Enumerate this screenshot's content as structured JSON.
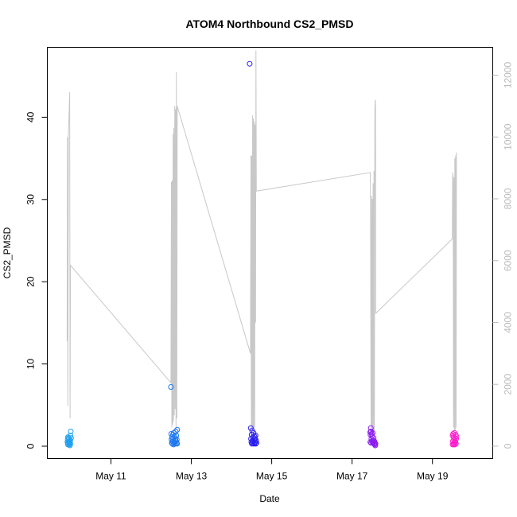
{
  "chart_data": {
    "type": "scatter",
    "title": "ATOM4 Northbound CS2_PMSD",
    "xlabel": "Date",
    "ylabel": "CS2_PMSD",
    "xlim": [
      "2016-05-09T10:00",
      "2016-05-20T12:00"
    ],
    "ylim": [
      -1.5,
      48.5
    ],
    "x_ticks": [
      {
        "label": "May 11",
        "date": "2016-05-11"
      },
      {
        "label": "May 13",
        "date": "2016-05-13"
      },
      {
        "label": "May 15",
        "date": "2016-05-15"
      },
      {
        "label": "May 17",
        "date": "2016-05-17"
      },
      {
        "label": "May 19",
        "date": "2016-05-19"
      }
    ],
    "y_ticks": [
      0,
      10,
      20,
      30,
      40
    ],
    "y2_ticks": [
      0,
      2000,
      4000,
      6000,
      8000,
      10000,
      12000
    ],
    "y2lim": [
      -400,
      12900
    ],
    "grid": false,
    "point_colors": [
      "#1ea0f0",
      "#1e78f0",
      "#2a1ef0",
      "#8a1ef0",
      "#ff1ecc"
    ],
    "line_color": "#c8c8c8",
    "right_axis_color": "#bbbbbb",
    "secondary_series": {
      "type": "line",
      "points": [
        [
          "2016-05-09T21:50",
          3400
        ],
        [
          "2016-05-09T22:00",
          10000
        ],
        [
          "2016-05-09T22:15",
          1300
        ],
        [
          "2016-05-09T22:35",
          10100
        ],
        [
          "2016-05-09T22:55",
          10600
        ],
        [
          "2016-05-09T23:20",
          11450
        ],
        [
          "2016-05-09T23:35",
          900
        ],
        [
          "2016-05-09T23:50",
          5850
        ],
        [
          "2016-05-12T11:50",
          2050
        ],
        [
          "2016-05-12T12:05",
          8550
        ],
        [
          "2016-05-12T12:20",
          600
        ],
        [
          "2016-05-12T12:35",
          8600
        ],
        [
          "2016-05-12T12:50",
          700
        ],
        [
          "2016-05-12T13:05",
          10100
        ],
        [
          "2016-05-12T13:20",
          800
        ],
        [
          "2016-05-12T13:35",
          10300
        ],
        [
          "2016-05-12T13:50",
          1000
        ],
        [
          "2016-05-12T14:05",
          11000
        ],
        [
          "2016-05-12T14:20",
          1200
        ],
        [
          "2016-05-12T14:35",
          10900
        ],
        [
          "2016-05-12T14:50",
          500
        ],
        [
          "2016-05-12T15:05",
          12100
        ],
        [
          "2016-05-12T15:20",
          900
        ],
        [
          "2016-05-12T15:35",
          11000
        ],
        [
          "2016-05-14T11:20",
          3000
        ],
        [
          "2016-05-14T11:35",
          9400
        ],
        [
          "2016-05-14T11:50",
          500
        ],
        [
          "2016-05-14T12:05",
          9400
        ],
        [
          "2016-05-14T12:20",
          600
        ],
        [
          "2016-05-14T12:35",
          10700
        ],
        [
          "2016-05-14T12:50",
          400
        ],
        [
          "2016-05-14T13:05",
          10600
        ],
        [
          "2016-05-14T13:20",
          500
        ],
        [
          "2016-05-14T13:35",
          10500
        ],
        [
          "2016-05-14T13:50",
          600
        ],
        [
          "2016-05-14T14:05",
          10400
        ],
        [
          "2016-05-14T14:20",
          4000
        ],
        [
          "2016-05-14T14:35",
          12800
        ],
        [
          "2016-05-14T14:50",
          8250
        ],
        [
          "2016-05-17T10:50",
          8850
        ],
        [
          "2016-05-17T11:00",
          8200
        ],
        [
          "2016-05-17T11:20",
          600
        ],
        [
          "2016-05-17T11:35",
          8100
        ],
        [
          "2016-05-17T11:50",
          400
        ],
        [
          "2016-05-17T12:05",
          8000
        ],
        [
          "2016-05-17T12:20",
          400
        ],
        [
          "2016-05-17T12:35",
          8500
        ],
        [
          "2016-05-17T12:50",
          500
        ],
        [
          "2016-05-17T13:05",
          8900
        ],
        [
          "2016-05-17T13:20",
          500
        ],
        [
          "2016-05-17T13:35",
          10900
        ],
        [
          "2016-05-17T13:50",
          11200
        ],
        [
          "2016-05-17T14:00",
          11150
        ],
        [
          "2016-05-17T14:10",
          4300
        ],
        [
          "2016-05-19T11:50",
          6700
        ],
        [
          "2016-05-19T12:05",
          8850
        ],
        [
          "2016-05-19T12:20",
          8600
        ],
        [
          "2016-05-19T12:35",
          600
        ],
        [
          "2016-05-19T12:50",
          8700
        ],
        [
          "2016-05-19T13:05",
          500
        ],
        [
          "2016-05-19T13:20",
          9300
        ],
        [
          "2016-05-19T13:35",
          500
        ],
        [
          "2016-05-19T13:50",
          9400
        ],
        [
          "2016-05-19T14:05",
          600
        ],
        [
          "2016-05-19T14:20",
          9500
        ]
      ]
    },
    "series": [
      {
        "color": "#1ea0f0",
        "points": [
          [
            "2016-05-09T22:00",
            0.5
          ],
          [
            "2016-05-09T22:10",
            0.8
          ],
          [
            "2016-05-09T22:20",
            1.1
          ],
          [
            "2016-05-09T22:30",
            0.4
          ],
          [
            "2016-05-09T22:40",
            0.3
          ],
          [
            "2016-05-09T22:50",
            0.6
          ],
          [
            "2016-05-09T23:00",
            0.9
          ],
          [
            "2016-05-09T23:10",
            0.2
          ],
          [
            "2016-05-09T23:20",
            0.5
          ],
          [
            "2016-05-09T23:30",
            0.1
          ],
          [
            "2016-05-09T23:40",
            0.7
          ],
          [
            "2016-05-09T23:50",
            1.3
          ],
          [
            "2016-05-10T00:00",
            1.8
          ],
          [
            "2016-05-10T00:10",
            1.0
          ],
          [
            "2016-05-09T22:15",
            0.2
          ],
          [
            "2016-05-09T22:45",
            1.0
          ],
          [
            "2016-05-09T23:15",
            0.4
          ],
          [
            "2016-05-09T23:45",
            0.3
          ]
        ]
      },
      {
        "color": "#1e78f0",
        "points": [
          [
            "2016-05-12T11:50",
            7.2
          ],
          [
            "2016-05-12T12:00",
            1.5
          ],
          [
            "2016-05-12T12:10",
            0.8
          ],
          [
            "2016-05-12T12:20",
            0.4
          ],
          [
            "2016-05-12T12:30",
            1.1
          ],
          [
            "2016-05-12T12:40",
            0.3
          ],
          [
            "2016-05-12T12:50",
            0.6
          ],
          [
            "2016-05-12T13:00",
            1.4
          ],
          [
            "2016-05-12T13:10",
            0.9
          ],
          [
            "2016-05-12T13:20",
            0.2
          ],
          [
            "2016-05-12T13:30",
            1.6
          ],
          [
            "2016-05-12T13:40",
            0.5
          ],
          [
            "2016-05-12T13:50",
            0.4
          ],
          [
            "2016-05-12T14:00",
            1.2
          ],
          [
            "2016-05-12T14:10",
            0.7
          ],
          [
            "2016-05-12T14:20",
            0.3
          ],
          [
            "2016-05-12T14:30",
            0.9
          ],
          [
            "2016-05-12T14:40",
            1.8
          ],
          [
            "2016-05-12T14:50",
            0.6
          ],
          [
            "2016-05-12T15:00",
            1.3
          ],
          [
            "2016-05-12T15:10",
            0.4
          ],
          [
            "2016-05-12T15:20",
            0.8
          ],
          [
            "2016-05-12T15:30",
            0.3
          ],
          [
            "2016-05-12T15:35",
            2.0
          ]
        ]
      },
      {
        "color": "#2a1ef0",
        "points": [
          [
            "2016-05-14T10:50",
            46.5
          ],
          [
            "2016-05-14T11:30",
            2.2
          ],
          [
            "2016-05-14T11:40",
            0.9
          ],
          [
            "2016-05-14T11:50",
            0.5
          ],
          [
            "2016-05-14T12:00",
            1.4
          ],
          [
            "2016-05-14T12:10",
            0.3
          ],
          [
            "2016-05-14T12:20",
            1.9
          ],
          [
            "2016-05-14T12:30",
            0.7
          ],
          [
            "2016-05-14T12:40",
            0.4
          ],
          [
            "2016-05-14T12:50",
            1.1
          ],
          [
            "2016-05-14T13:00",
            0.6
          ],
          [
            "2016-05-14T13:10",
            1.6
          ],
          [
            "2016-05-14T13:20",
            0.3
          ],
          [
            "2016-05-14T13:30",
            0.8
          ],
          [
            "2016-05-14T13:40",
            1.2
          ],
          [
            "2016-05-14T13:50",
            0.4
          ],
          [
            "2016-05-14T14:00",
            0.9
          ],
          [
            "2016-05-14T14:10",
            0.5
          ],
          [
            "2016-05-14T14:20",
            1.3
          ],
          [
            "2016-05-14T14:30",
            0.3
          ],
          [
            "2016-05-14T14:40",
            0.7
          ],
          [
            "2016-05-14T14:50",
            0.4
          ]
        ]
      },
      {
        "color": "#8a1ef0",
        "points": [
          [
            "2016-05-17T10:50",
            1.7
          ],
          [
            "2016-05-17T11:00",
            1.4
          ],
          [
            "2016-05-17T11:10",
            2.2
          ],
          [
            "2016-05-17T11:20",
            1.8
          ],
          [
            "2016-05-17T11:30",
            0.9
          ],
          [
            "2016-05-17T11:40",
            1.5
          ],
          [
            "2016-05-17T11:50",
            0.6
          ],
          [
            "2016-05-17T12:00",
            1.2
          ],
          [
            "2016-05-17T12:10",
            0.5
          ],
          [
            "2016-05-17T12:20",
            1.6
          ],
          [
            "2016-05-17T12:30",
            0.7
          ],
          [
            "2016-05-17T12:40",
            0.4
          ],
          [
            "2016-05-17T12:50",
            1.0
          ],
          [
            "2016-05-17T13:00",
            0.5
          ],
          [
            "2016-05-17T13:10",
            0.3
          ],
          [
            "2016-05-17T13:20",
            0.6
          ],
          [
            "2016-05-17T13:30",
            0.2
          ],
          [
            "2016-05-17T13:40",
            0.4
          ],
          [
            "2016-05-17T13:50",
            0.1
          ],
          [
            "2016-05-17T14:00",
            0.3
          ],
          [
            "2016-05-17T10:55",
            0.5
          ],
          [
            "2016-05-17T11:25",
            0.4
          ]
        ]
      },
      {
        "color": "#ff1ecc",
        "points": [
          [
            "2016-05-19T12:00",
            1.3
          ],
          [
            "2016-05-19T12:10",
            0.6
          ],
          [
            "2016-05-19T12:20",
            1.5
          ],
          [
            "2016-05-19T12:30",
            0.3
          ],
          [
            "2016-05-19T12:40",
            1.1
          ],
          [
            "2016-05-19T12:50",
            0.8
          ],
          [
            "2016-05-19T13:00",
            0.4
          ],
          [
            "2016-05-19T13:10",
            1.6
          ],
          [
            "2016-05-19T13:20",
            0.2
          ],
          [
            "2016-05-19T13:30",
            1.0
          ],
          [
            "2016-05-19T13:40",
            0.5
          ],
          [
            "2016-05-19T13:50",
            1.4
          ],
          [
            "2016-05-19T14:00",
            0.3
          ],
          [
            "2016-05-19T14:10",
            0.9
          ],
          [
            "2016-05-19T14:20",
            1.2
          ],
          [
            "2016-05-19T12:05",
            0.2
          ],
          [
            "2016-05-19T12:45",
            0.2
          ],
          [
            "2016-05-19T13:25",
            0.6
          ]
        ]
      }
    ]
  }
}
